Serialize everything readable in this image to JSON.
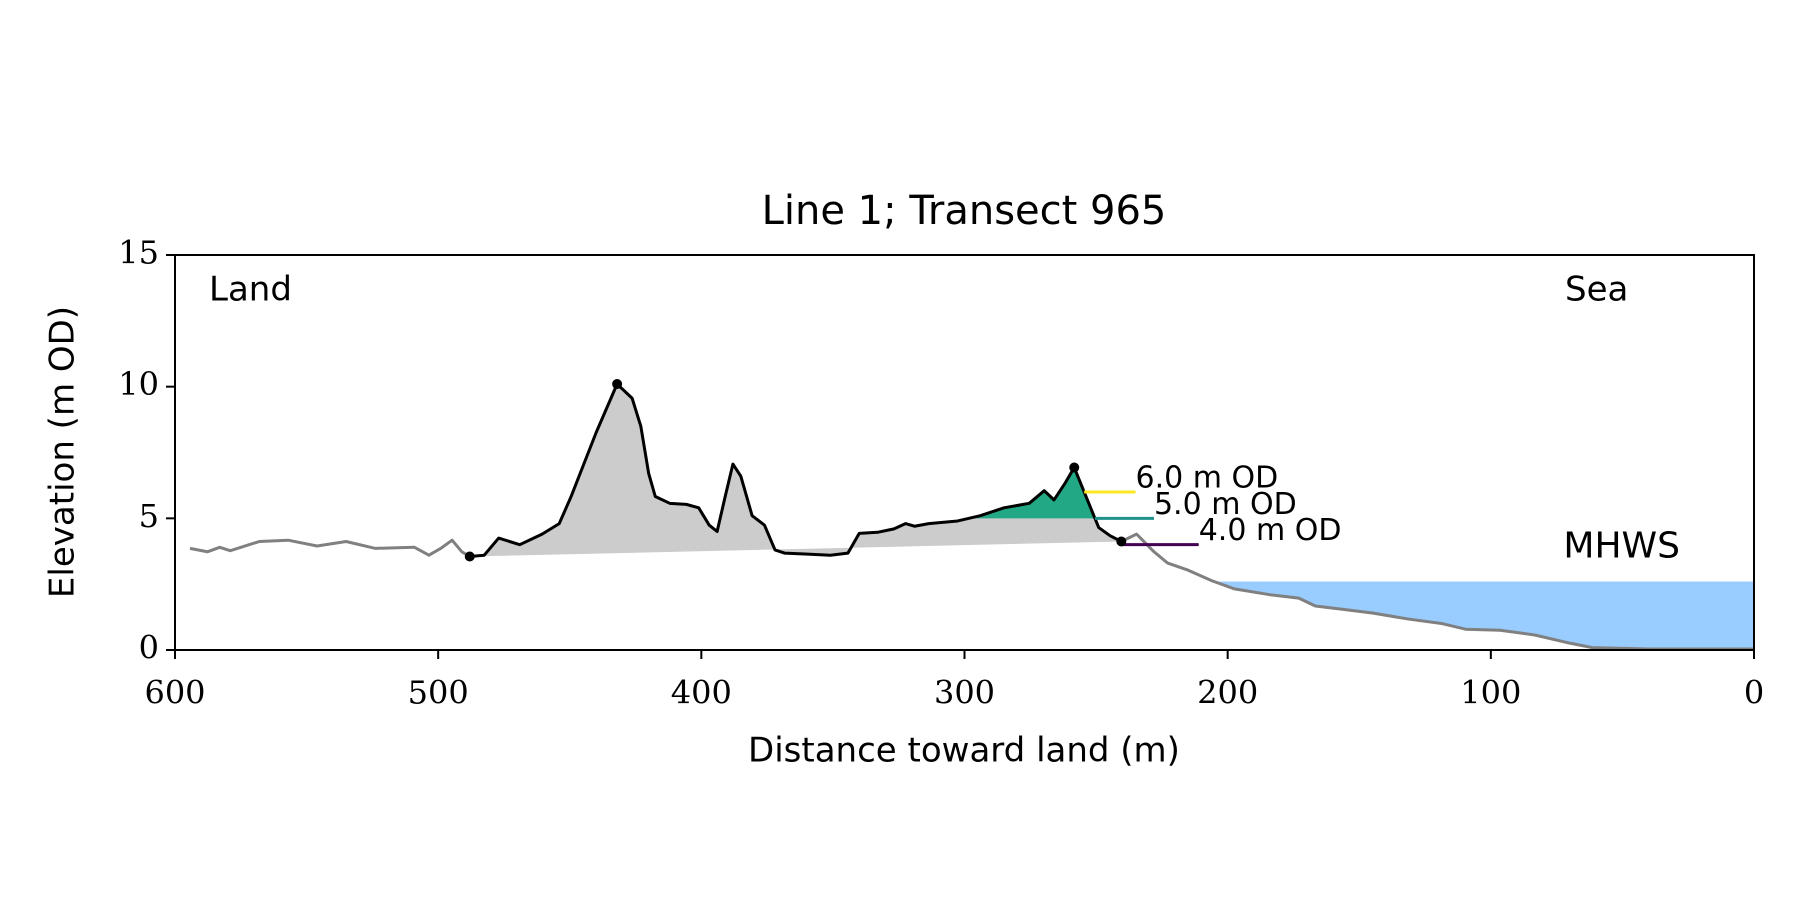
{
  "chart_data": {
    "type": "line",
    "title": "Line 1; Transect 965",
    "xlabel": "Distance toward land (m)",
    "ylabel": "Elevation (m OD)",
    "xlim": [
      600,
      0
    ],
    "ylim": [
      0,
      15
    ],
    "xticks": [
      600,
      500,
      400,
      300,
      200,
      100,
      0
    ],
    "yticks": [
      0,
      5,
      10,
      15
    ],
    "land_label": "Land",
    "sea_label": "Sea",
    "series": [
      {
        "color": "#808080",
        "x": [
          594.3,
          587.7,
          583,
          579,
          568,
          557,
          546,
          535,
          524,
          509,
          503.5,
          499,
          494.7,
          491,
          488
        ],
        "values": [
          3.86,
          3.73,
          3.9,
          3.77,
          4.12,
          4.17,
          3.95,
          4.12,
          3.86,
          3.9,
          3.6,
          3.86,
          4.17,
          3.73,
          3.55
        ]
      },
      {
        "color": "#000000",
        "x": [
          488,
          482.5,
          477,
          469,
          460.5,
          454,
          449.6,
          440,
          432,
          426.3,
          423,
          420,
          417.5,
          412,
          405.7,
          401,
          397,
          394,
          391,
          388,
          385,
          380.7,
          376,
          372,
          368.4,
          359.6,
          351,
          344.3,
          340,
          333,
          326.8,
          322.4,
          319,
          313.6,
          302.6,
          294,
          285,
          275.4,
          269.7,
          266,
          262,
          258.3,
          253.5,
          249,
          244.7,
          240.4
        ],
        "values": [
          3.55,
          3.6,
          4.25,
          4.0,
          4.4,
          4.8,
          5.8,
          8.25,
          10.1,
          9.56,
          8.5,
          6.7,
          5.83,
          5.57,
          5.53,
          5.4,
          4.74,
          4.5,
          5.8,
          7.06,
          6.6,
          5.1,
          4.74,
          3.8,
          3.68,
          3.64,
          3.6,
          3.68,
          4.43,
          4.47,
          4.6,
          4.8,
          4.7,
          4.8,
          4.9,
          5.1,
          5.4,
          5.57,
          6.05,
          5.7,
          6.3,
          6.93,
          5.75,
          4.65,
          4.34,
          4.12
        ]
      },
      {
        "color": "#808080",
        "x": [
          240.4,
          234.6,
          228,
          222.8,
          215,
          206,
          197.4,
          184,
          173,
          166.7,
          155.7,
          144.7,
          131.6,
          118.4,
          109.6,
          96.5,
          83.3,
          70,
          61.4,
          39.5,
          0
        ],
        "values": [
          4.12,
          4.4,
          3.73,
          3.3,
          3.03,
          2.63,
          2.32,
          2.1,
          1.97,
          1.67,
          1.54,
          1.4,
          1.18,
          1.0,
          0.79,
          0.75,
          0.57,
          0.26,
          0.09,
          0.04,
          0.04
        ]
      }
    ],
    "dune_fill": "#cccccc",
    "markers": {
      "color": "#000000",
      "x": [
        488,
        432,
        258.3,
        240.4
      ],
      "values": [
        3.55,
        10.1,
        6.93,
        4.12
      ]
    },
    "levels": [
      {
        "value": 6,
        "label": "6.0 m OD",
        "color": "#fde725",
        "fill": "#fde725",
        "x": 235
      },
      {
        "value": 5,
        "label": "5.0 m OD",
        "color": "#21918c",
        "fill": "#22a884",
        "x": 228
      },
      {
        "value": 4,
        "label": "4.0 m OD",
        "color": "#440154",
        "x": 211
      }
    ],
    "mhws": {
      "label": "MHWS",
      "value": 2.6,
      "color": "#99ccff",
      "text_color": "#6a9fd4"
    }
  }
}
